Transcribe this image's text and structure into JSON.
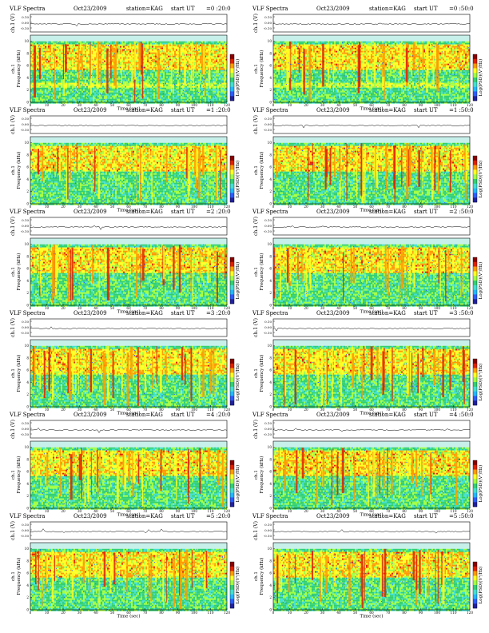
{
  "header_title": "VLF Spectra",
  "date": "Oct23/2009",
  "station": "station=KAG",
  "start_prefix": "start  UT",
  "panels": [
    {
      "start_ut": "=0 :20:0"
    },
    {
      "start_ut": "=0 :50:0"
    },
    {
      "start_ut": "=1 :20:0"
    },
    {
      "start_ut": "=1 :50:0"
    },
    {
      "start_ut": "=2 :20:0"
    },
    {
      "start_ut": "=2 :50:0"
    },
    {
      "start_ut": "=3 :20:0"
    },
    {
      "start_ut": "=3 :50:0"
    },
    {
      "start_ut": "=4 :20:0"
    },
    {
      "start_ut": "=4 :50:0"
    },
    {
      "start_ut": "=5 :20:0"
    },
    {
      "start_ut": "=5 :50:0"
    }
  ],
  "labels": {
    "ch_label": "ch.1 (V)",
    "ylabel": "ch.1\nFrequency  (kHz)",
    "xlabel": "Time  (sec)",
    "cbar_label": "Log(PSD)(V²/Hz)"
  },
  "chart_data": {
    "type": "heatmap",
    "x_ticks": [
      0,
      10,
      20,
      30,
      40,
      50,
      60,
      70,
      80,
      90,
      100,
      110,
      120
    ],
    "y_ticks": [
      0,
      2,
      4,
      6,
      8,
      10
    ],
    "ch_ticks": [
      "0.10",
      "0.00",
      "-0.10"
    ],
    "xlim": [
      0,
      120
    ],
    "ylim": [
      0,
      11
    ],
    "colormap": [
      "#2020a0",
      "#2a5cff",
      "#20b8ff",
      "#40e0d0",
      "#30d070",
      "#a0ff40",
      "#ffff20",
      "#ff9a00",
      "#e02000",
      "#8a0000"
    ]
  },
  "colors": {
    "field": "#5fd3c0",
    "axes": "#000000"
  }
}
